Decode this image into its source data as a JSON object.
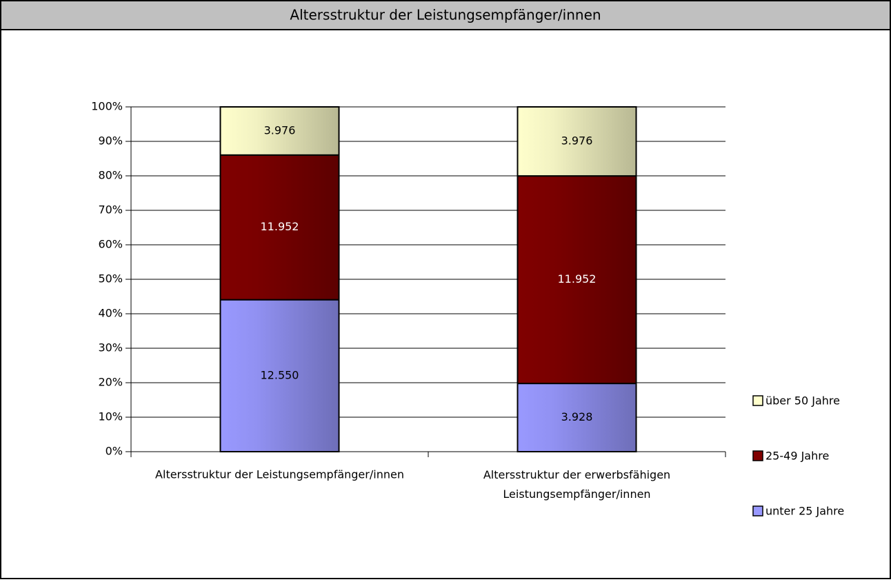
{
  "chart_data": {
    "type": "bar",
    "stacking": "percent",
    "title": "Altersstruktur der Leistungsempfänger/innen",
    "categories": [
      "Altersstruktur der Leistungsempfänger/innen",
      "Altersstruktur der erwerbsfähigen Leistungsempfänger/innen"
    ],
    "series": [
      {
        "name": "unter 25 Jahre",
        "color": "#9999ff",
        "values": [
          12550,
          3928
        ],
        "value_labels": [
          "12.550",
          "3.928"
        ]
      },
      {
        "name": "25-49 Jahre",
        "color": "#800000",
        "values": [
          11952,
          11952
        ],
        "value_labels": [
          "11.952",
          "11.952"
        ]
      },
      {
        "name": "über 50 Jahre",
        "color": "#ffffcc",
        "values": [
          3976,
          3976
        ],
        "value_labels": [
          "3.976",
          "3.976"
        ]
      }
    ],
    "ylim": [
      0,
      100
    ],
    "yticks": [
      {
        "value": 0,
        "label": "0%"
      },
      {
        "value": 10,
        "label": "10%"
      },
      {
        "value": 20,
        "label": "20%"
      },
      {
        "value": 30,
        "label": "30%"
      },
      {
        "value": 40,
        "label": "40%"
      },
      {
        "value": 50,
        "label": "50%"
      },
      {
        "value": 60,
        "label": "60%"
      },
      {
        "value": 70,
        "label": "70%"
      },
      {
        "value": 80,
        "label": "80%"
      },
      {
        "value": 90,
        "label": "90%"
      },
      {
        "value": 100,
        "label": "100%"
      }
    ],
    "grid": true,
    "legend": "right"
  }
}
